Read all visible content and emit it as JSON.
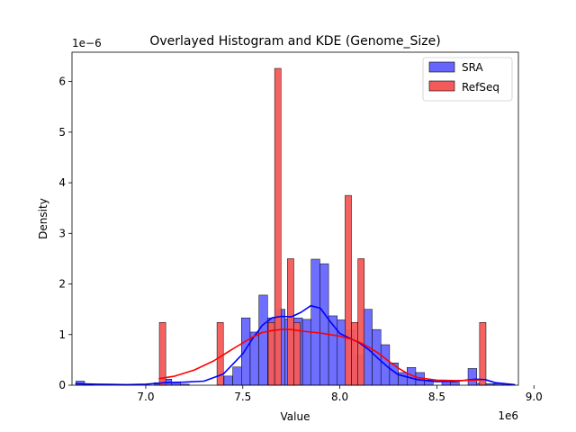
{
  "chart_data": {
    "type": "histogram",
    "title": "Overlayed Histogram and KDE (Genome_Size)",
    "xlabel": "Value",
    "ylabel": "Density",
    "x_offset_label": "1e6",
    "y_offset_label": "1e−6",
    "xlim": [
      6.62,
      8.92
    ],
    "ylim": [
      0,
      6.58
    ],
    "x_ticks": [
      7.0,
      7.5,
      8.0,
      8.5,
      9.0
    ],
    "x_tick_labels": [
      "7.0",
      "7.5",
      "8.0",
      "8.5",
      "9.0"
    ],
    "y_ticks": [
      0,
      1,
      2,
      3,
      4,
      5,
      6
    ],
    "y_tick_labels": [
      "0",
      "1",
      "2",
      "3",
      "4",
      "5",
      "6"
    ],
    "grid": false,
    "legend_position": "top-right",
    "units_note": "x values in units of 1e6, density values in units of 1e-6",
    "series": [
      {
        "name": "SRA",
        "color": "#0000ff",
        "bar_color": "#6666ff",
        "bin_start": 6.64,
        "bin_width": 0.0449,
        "densities": [
          0.08,
          0.03,
          0,
          0,
          0,
          0,
          0,
          0,
          0,
          0.05,
          0.12,
          0.05,
          0.02,
          0,
          0,
          0,
          0,
          0.18,
          0.36,
          1.33,
          1.05,
          1.78,
          1.33,
          1.5,
          1.31,
          1.33,
          1.3,
          2.49,
          2.4,
          1.37,
          1.29,
          1.1,
          0.59,
          1.5,
          1.1,
          0.8,
          0.44,
          0.25,
          0.35,
          0.25,
          0.1,
          0,
          0.08,
          0.06,
          0,
          0.33,
          0.04,
          0.03,
          0.03,
          0.02
        ],
        "kde": [
          [
            6.64,
            0.03
          ],
          [
            6.75,
            0.02
          ],
          [
            6.9,
            0.01
          ],
          [
            7.0,
            0.02
          ],
          [
            7.1,
            0.05
          ],
          [
            7.2,
            0.06
          ],
          [
            7.3,
            0.08
          ],
          [
            7.4,
            0.22
          ],
          [
            7.5,
            0.62
          ],
          [
            7.55,
            0.92
          ],
          [
            7.6,
            1.18
          ],
          [
            7.65,
            1.33
          ],
          [
            7.7,
            1.36
          ],
          [
            7.75,
            1.35
          ],
          [
            7.8,
            1.44
          ],
          [
            7.85,
            1.57
          ],
          [
            7.9,
            1.52
          ],
          [
            7.95,
            1.26
          ],
          [
            8.0,
            1.02
          ],
          [
            8.05,
            0.93
          ],
          [
            8.1,
            0.84
          ],
          [
            8.15,
            0.7
          ],
          [
            8.2,
            0.52
          ],
          [
            8.25,
            0.35
          ],
          [
            8.3,
            0.21
          ],
          [
            8.4,
            0.11
          ],
          [
            8.5,
            0.07
          ],
          [
            8.6,
            0.08
          ],
          [
            8.7,
            0.12
          ],
          [
            8.75,
            0.11
          ],
          [
            8.8,
            0.05
          ],
          [
            8.9,
            0.01
          ]
        ]
      },
      {
        "name": "RefSeq",
        "color": "#ff0000",
        "bar_color": "#f45a5a",
        "bin_start": 7.07,
        "bin_width": 0.033,
        "densities": [
          1.24,
          0,
          0,
          0,
          0,
          0,
          0,
          0,
          0,
          1.24,
          0,
          0,
          0,
          0,
          0,
          0,
          0,
          1.24,
          6.26,
          0,
          2.5,
          1.24,
          0,
          0,
          0,
          0,
          0,
          0,
          0,
          3.75,
          1.24,
          2.5,
          0,
          0,
          0,
          0,
          0,
          0,
          0,
          0,
          0,
          0,
          0,
          0,
          0,
          0,
          0,
          0,
          0,
          0,
          1.24
        ],
        "kde": [
          [
            7.07,
            0.13
          ],
          [
            7.15,
            0.18
          ],
          [
            7.25,
            0.3
          ],
          [
            7.35,
            0.48
          ],
          [
            7.45,
            0.72
          ],
          [
            7.55,
            0.95
          ],
          [
            7.6,
            1.04
          ],
          [
            7.65,
            1.08
          ],
          [
            7.7,
            1.1
          ],
          [
            7.75,
            1.1
          ],
          [
            7.8,
            1.07
          ],
          [
            7.85,
            1.05
          ],
          [
            7.9,
            1.03
          ],
          [
            7.95,
            1.0
          ],
          [
            8.0,
            0.97
          ],
          [
            8.05,
            0.92
          ],
          [
            8.1,
            0.85
          ],
          [
            8.15,
            0.75
          ],
          [
            8.2,
            0.63
          ],
          [
            8.25,
            0.48
          ],
          [
            8.3,
            0.34
          ],
          [
            8.35,
            0.23
          ],
          [
            8.4,
            0.15
          ],
          [
            8.5,
            0.1
          ],
          [
            8.6,
            0.09
          ],
          [
            8.7,
            0.1
          ],
          [
            8.72,
            0.1
          ]
        ]
      }
    ]
  }
}
